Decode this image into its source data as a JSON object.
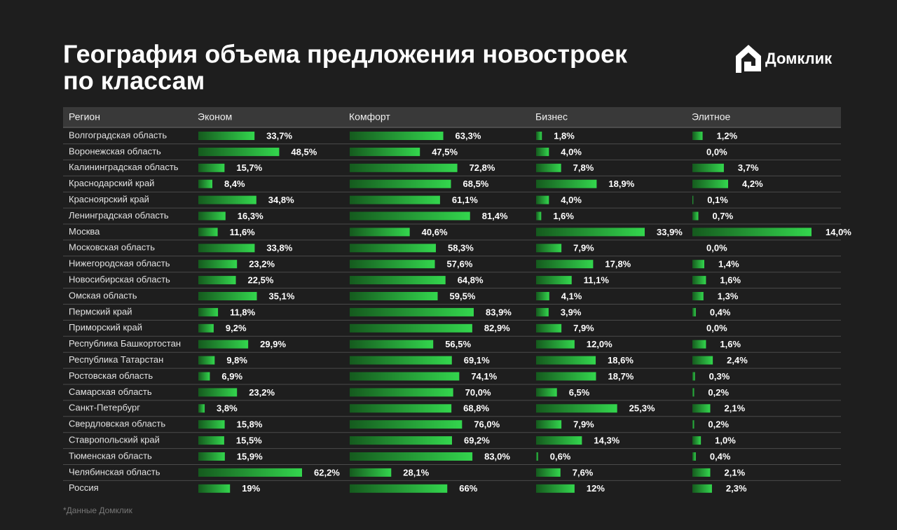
{
  "title_lines": [
    "География объема предложения новостроек",
    "по классам"
  ],
  "brand": "Домклик",
  "footnote": "*Данные Домклик",
  "chart_data": {
    "type": "bar-table",
    "row_header": "Регион",
    "categories": [
      "Волгоградская область",
      "Воронежская область",
      "Калининградская область",
      "Краснодарский край",
      "Красноярский край",
      "Ленинградская область",
      "Москва",
      "Московская область",
      "Нижегородская область",
      "Новосибирская область",
      "Омская область",
      "Пермский край",
      "Приморский край",
      "Республика Башкортостан",
      "Республика Татарстан",
      "Ростовская область",
      "Самарская область",
      "Санкт-Петербург",
      "Свердловская область",
      "Ставропольский край",
      "Тюменская область",
      "Челябинская область",
      "Россия"
    ],
    "series": [
      {
        "name": "Эконом",
        "color": "#2fd14a",
        "values": [
          33.7,
          48.5,
          15.7,
          8.4,
          34.8,
          16.3,
          11.6,
          33.8,
          23.2,
          22.5,
          35.1,
          11.8,
          9.2,
          29.9,
          9.8,
          6.9,
          23.2,
          3.8,
          15.8,
          15.5,
          15.9,
          62.2,
          19
        ],
        "value_labels": [
          "33,7%",
          "48,5%",
          "15,7%",
          "8,4%",
          "34,8%",
          "16,3%",
          "11,6%",
          "33,8%",
          "23,2%",
          "22,5%",
          "35,1%",
          "11,8%",
          "9,2%",
          "29,9%",
          "9,8%",
          "6,9%",
          "23,2%",
          "3,8%",
          "15,8%",
          "15,5%",
          "15,9%",
          "62,2%",
          "19%"
        ]
      },
      {
        "name": "Комфорт",
        "color": "#2fd14a",
        "values": [
          63.3,
          47.5,
          72.8,
          68.5,
          61.1,
          81.4,
          40.6,
          58.3,
          57.6,
          64.8,
          59.5,
          83.9,
          82.9,
          56.5,
          69.1,
          74.1,
          70.0,
          68.8,
          76.0,
          69.2,
          83.0,
          28.1,
          66
        ],
        "value_labels": [
          "63,3%",
          "47,5%",
          "72,8%",
          "68,5%",
          "61,1%",
          "81,4%",
          "40,6%",
          "58,3%",
          "57,6%",
          "64,8%",
          "59,5%",
          "83,9%",
          "82,9%",
          "56,5%",
          "69,1%",
          "74,1%",
          "70,0%",
          "68,8%",
          "76,0%",
          "69,2%",
          "83,0%",
          "28,1%",
          "66%"
        ]
      },
      {
        "name": "Бизнес",
        "color": "#2fd14a",
        "values": [
          1.8,
          4.0,
          7.8,
          18.9,
          4.0,
          1.6,
          33.9,
          7.9,
          17.8,
          11.1,
          4.1,
          3.9,
          7.9,
          12.0,
          18.6,
          18.7,
          6.5,
          25.3,
          7.9,
          14.3,
          0.6,
          7.6,
          12
        ],
        "value_labels": [
          "1,8%",
          "4,0%",
          "7,8%",
          "18,9%",
          "4,0%",
          "1,6%",
          "33,9%",
          "7,9%",
          "17,8%",
          "11,1%",
          "4,1%",
          "3,9%",
          "7,9%",
          "12,0%",
          "18,6%",
          "18,7%",
          "6,5%",
          "25,3%",
          "7,9%",
          "14,3%",
          "0,6%",
          "7,6%",
          "12%"
        ]
      },
      {
        "name": "Элитное",
        "color": "#2fd14a",
        "values": [
          1.2,
          0.0,
          3.7,
          4.2,
          0.1,
          0.7,
          14.0,
          0.0,
          1.4,
          1.6,
          1.3,
          0.4,
          0.0,
          1.6,
          2.4,
          0.3,
          0.2,
          2.1,
          0.2,
          1.0,
          0.4,
          2.1,
          2.3
        ],
        "value_labels": [
          "1,2%",
          "0,0%",
          "3,7%",
          "4,2%",
          "0,1%",
          "0,7%",
          "14,0%",
          "0,0%",
          "1,4%",
          "1,6%",
          "1,3%",
          "0,4%",
          "0,0%",
          "1,6%",
          "2,4%",
          "0,3%",
          "0,2%",
          "2,1%",
          "0,2%",
          "1,0%",
          "0,4%",
          "2,1%",
          "2,3%"
        ]
      }
    ]
  }
}
